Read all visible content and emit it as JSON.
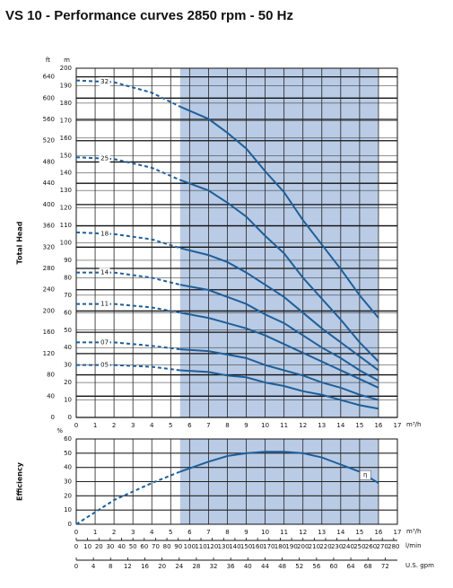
{
  "title": "VS 10 - Performance curves 2850 rpm - 50 Hz",
  "chart_data": [
    {
      "type": "line",
      "y_label": "Total Head",
      "y_unit": "m",
      "y2_unit": "ft",
      "x_unit": "m³/h",
      "x": [
        0,
        2,
        4,
        5.5,
        7,
        8,
        9,
        10,
        11,
        12,
        13,
        14,
        15,
        16
      ],
      "xlim": [
        0,
        17
      ],
      "xticks": [
        0,
        1,
        2,
        3,
        4,
        5,
        6,
        7,
        8,
        9,
        10,
        11,
        12,
        13,
        14,
        15,
        16,
        17
      ],
      "ylim": [
        0,
        200
      ],
      "yticks": [
        0,
        10,
        20,
        30,
        40,
        50,
        60,
        70,
        80,
        90,
        100,
        110,
        120,
        130,
        140,
        150,
        160,
        170,
        180,
        190,
        200
      ],
      "y2lim": [
        0,
        656.2
      ],
      "y2ticks": [
        0,
        40,
        80,
        120,
        160,
        200,
        240,
        280,
        320,
        360,
        400,
        440,
        480,
        520,
        560,
        600,
        640
      ],
      "shaded_xrange": [
        5.5,
        16
      ],
      "grid": true,
      "series": [
        {
          "name": "32",
          "color": "#1f5f99",
          "values": [
            193,
            192,
            186,
            178,
            171,
            163,
            154,
            141,
            129,
            113,
            99,
            85,
            70,
            57
          ]
        },
        {
          "name": "25",
          "color": "#1f5f99",
          "values": [
            149,
            148,
            143,
            136,
            130,
            123,
            115,
            104,
            94,
            80,
            68,
            56,
            43,
            32
          ]
        },
        {
          "name": "18",
          "color": "#1f5f99",
          "values": [
            106,
            105,
            102,
            97,
            93,
            89,
            83,
            76,
            69,
            60,
            51,
            43,
            35,
            27
          ]
        },
        {
          "name": "14",
          "color": "#1f5f99",
          "values": [
            83,
            83,
            80,
            76,
            73,
            69,
            65,
            59,
            54,
            47,
            40,
            34,
            27,
            21
          ]
        },
        {
          "name": "11",
          "color": "#1f5f99",
          "values": [
            65,
            65,
            63,
            60,
            57,
            54,
            51,
            47,
            42,
            37,
            32,
            27,
            22,
            17
          ]
        },
        {
          "name": "07",
          "color": "#1f5f99",
          "values": [
            43,
            43,
            41,
            39,
            38,
            36,
            34,
            30,
            27,
            24,
            20,
            17,
            13,
            10
          ]
        },
        {
          "name": "05",
          "color": "#1f5f99",
          "values": [
            30,
            30,
            29,
            27,
            26,
            24,
            23,
            20,
            18,
            15,
            13,
            10,
            7,
            5
          ]
        }
      ]
    },
    {
      "type": "line",
      "y_label": "Efficiency",
      "y_unit": "%",
      "x_unit": "m³/h",
      "x": [
        0,
        2,
        4,
        5.5,
        7,
        8,
        9,
        10,
        11,
        12,
        13,
        14,
        15,
        16
      ],
      "xlim": [
        0,
        17
      ],
      "xticks": [
        0,
        1,
        2,
        3,
        4,
        5,
        6,
        7,
        8,
        9,
        10,
        11,
        12,
        13,
        14,
        15,
        16,
        17
      ],
      "ylim": [
        0,
        60
      ],
      "yticks": [
        0,
        10,
        20,
        30,
        40,
        50,
        60
      ],
      "shaded_xrange": [
        5.5,
        16
      ],
      "grid": true,
      "series": [
        {
          "name": "η",
          "color": "#1f5f99",
          "values": [
            0,
            17,
            29,
            37,
            44,
            48,
            50,
            51,
            51,
            50,
            47,
            42,
            37,
            29
          ]
        }
      ],
      "secondary_axes": [
        {
          "unit": "l/min",
          "xlim": [
            0,
            283.3
          ],
          "xticks": [
            0,
            10,
            20,
            30,
            40,
            50,
            60,
            70,
            80,
            90,
            100,
            110,
            120,
            130,
            140,
            150,
            160,
            170,
            180,
            190,
            200,
            210,
            220,
            230,
            240,
            250,
            260,
            270,
            280
          ]
        },
        {
          "unit": "U.S. gpm",
          "xlim": [
            0,
            74.85
          ],
          "xticks": [
            0,
            4,
            8,
            12,
            16,
            20,
            24,
            28,
            32,
            36,
            40,
            44,
            48,
            52,
            56,
            60,
            64,
            68,
            72
          ]
        }
      ]
    }
  ]
}
